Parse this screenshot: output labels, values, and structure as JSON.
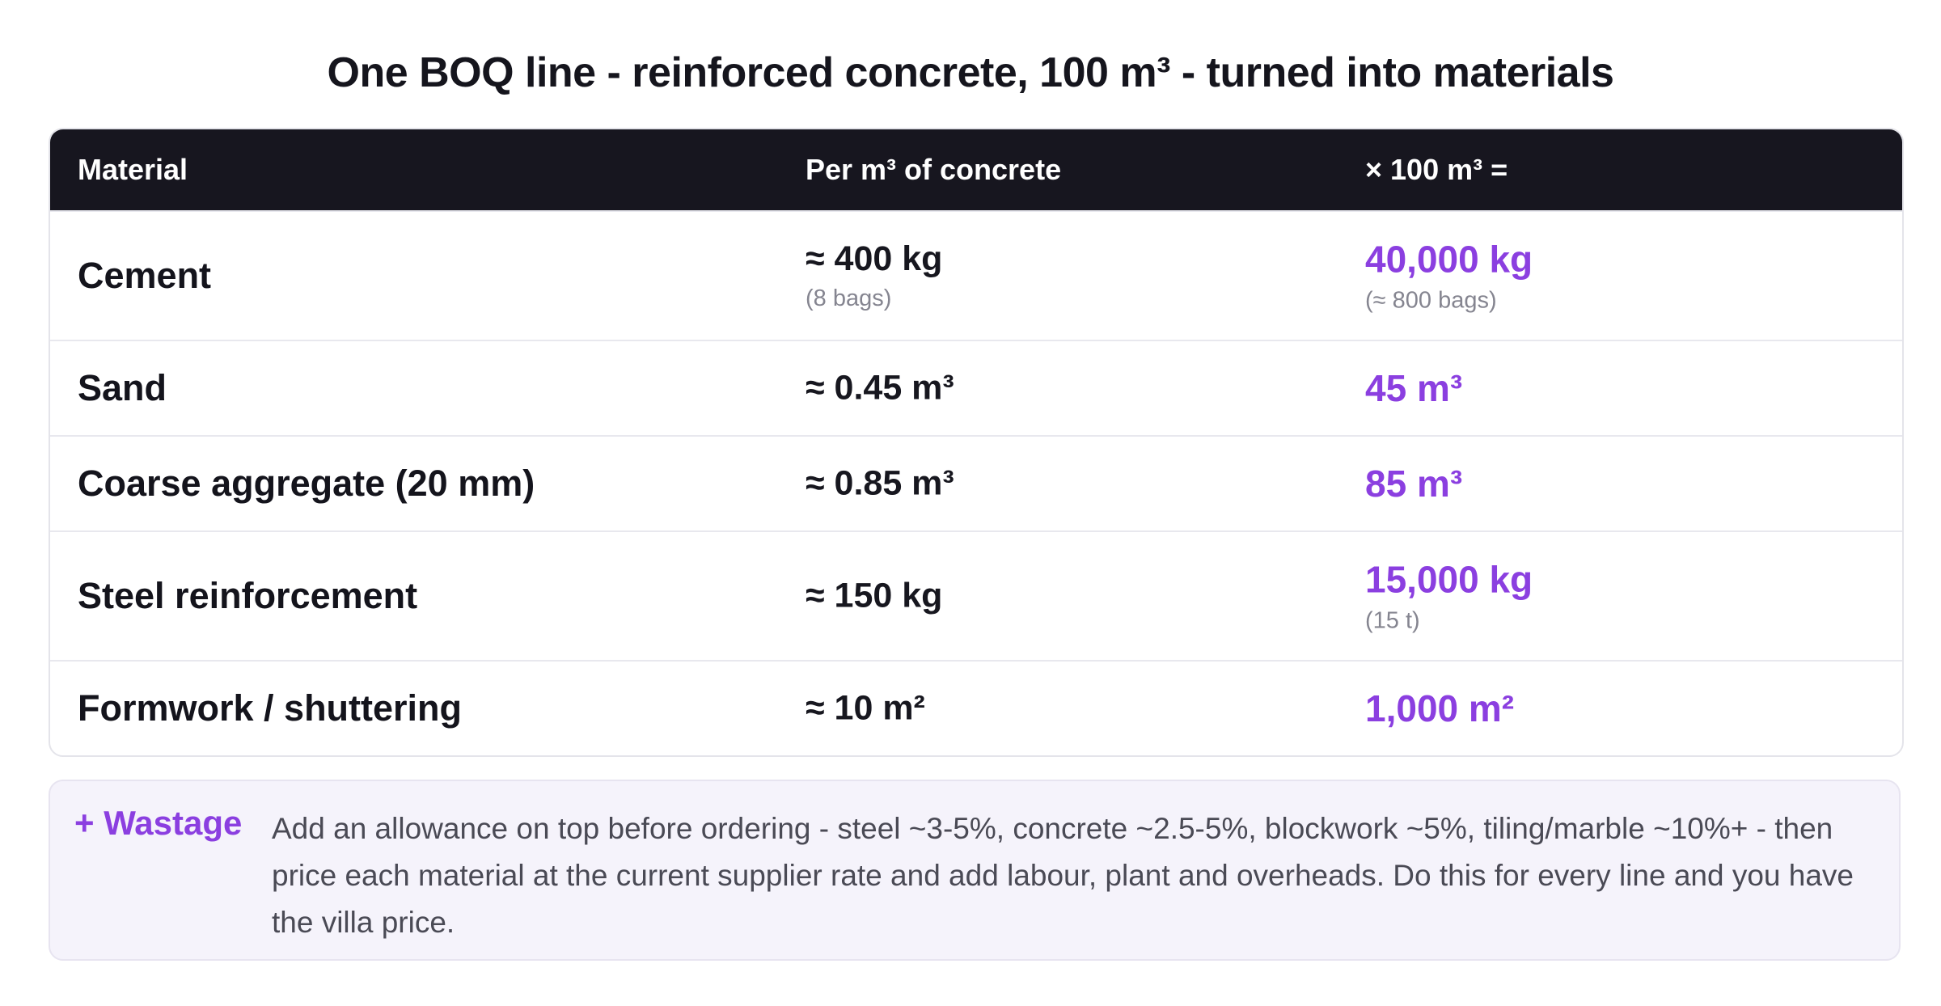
{
  "title": "One BOQ line - reinforced concrete, 100 m³ - turned into materials",
  "table": {
    "headers": {
      "material": "Material",
      "per": "Per m³ of concrete",
      "total": "× 100 m³ ="
    },
    "rows": [
      {
        "material": "Cement",
        "per": "≈ 400 kg",
        "per_sub": "(8 bags)",
        "total": "40,000 kg",
        "total_sub": "(≈ 800 bags)"
      },
      {
        "material": "Sand",
        "per": "≈ 0.45 m³",
        "total": "45 m³"
      },
      {
        "material": "Coarse aggregate (20 mm)",
        "per": "≈ 0.85 m³",
        "total": "85 m³"
      },
      {
        "material": "Steel reinforcement",
        "per": "≈ 150 kg",
        "total": "15,000 kg",
        "total_sub": "(15 t)"
      },
      {
        "material": "Formwork / shuttering",
        "per": "≈ 10 m²",
        "total": "1,000 m²"
      }
    ]
  },
  "note": {
    "label": "+ Wastage",
    "text": "Add an allowance on top before ordering - steel ~3-5%, concrete ~2.5-5%, blockwork ~5%, tiling/marble ~10%+ - then price each material at the current supplier rate and add labour, plant and overheads. Do this for every line and you have the villa price."
  },
  "colors": {
    "header_bg": "#17161f",
    "accent": "#8b3fe0",
    "note_bg": "#f5f3fb"
  }
}
